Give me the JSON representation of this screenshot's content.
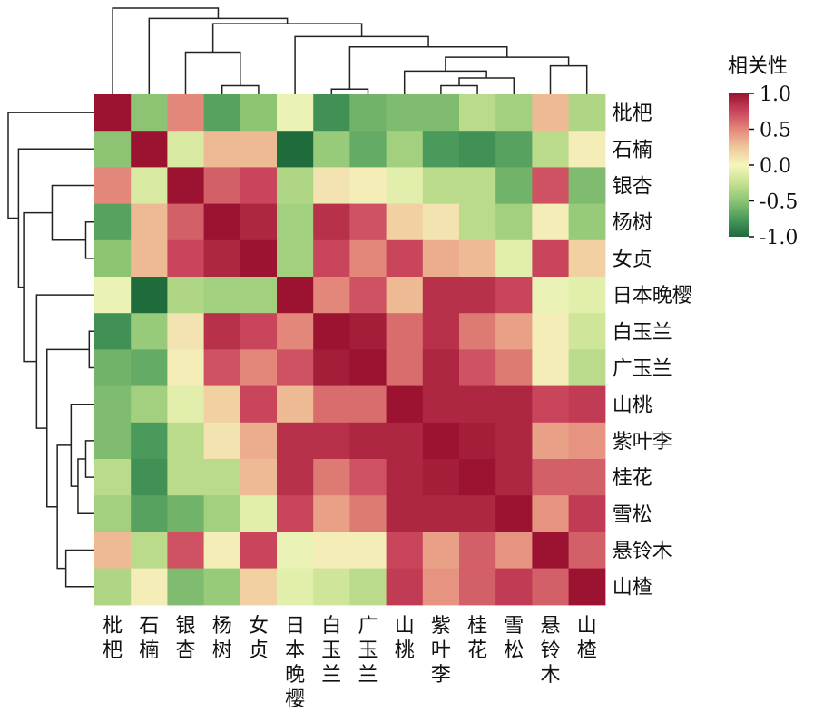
{
  "chart_data": {
    "type": "heatmap",
    "row_labels": [
      "枇杷",
      "石楠",
      "银杏",
      "杨树",
      "女贞",
      "日本晚樱",
      "白玉兰",
      "广玉兰",
      "山桃",
      "紫叶李",
      "桂花",
      "雪松",
      "悬铃木",
      "山楂"
    ],
    "col_labels": [
      "枇杷",
      "石楠",
      "银杏",
      "杨树",
      "女贞",
      "日本晚樱",
      "白玉兰",
      "广玉兰",
      "山桃",
      "紫叶李",
      "桂花",
      "雪松",
      "悬铃木",
      "山楂"
    ],
    "values": [
      [
        1.0,
        -0.5,
        0.5,
        -0.7,
        -0.5,
        -0.05,
        -0.8,
        -0.6,
        -0.55,
        -0.55,
        -0.3,
        -0.4,
        0.3,
        -0.35
      ],
      [
        -0.5,
        1.0,
        -0.15,
        0.3,
        0.3,
        -1.0,
        -0.45,
        -0.65,
        -0.4,
        -0.75,
        -0.8,
        -0.7,
        -0.3,
        0.05
      ],
      [
        0.5,
        -0.15,
        1.0,
        0.65,
        0.75,
        -0.35,
        0.1,
        0.05,
        -0.1,
        -0.3,
        -0.3,
        -0.6,
        0.7,
        -0.55
      ],
      [
        -0.7,
        0.3,
        0.65,
        1.0,
        0.9,
        -0.4,
        0.85,
        0.7,
        0.2,
        0.1,
        -0.3,
        -0.4,
        0.05,
        -0.45
      ],
      [
        -0.5,
        0.3,
        0.75,
        0.9,
        1.0,
        -0.4,
        0.75,
        0.5,
        0.75,
        0.35,
        0.3,
        -0.1,
        0.75,
        0.2
      ],
      [
        -0.05,
        -1.0,
        -0.35,
        -0.4,
        -0.4,
        1.0,
        0.5,
        0.7,
        0.3,
        0.85,
        0.85,
        0.75,
        -0.05,
        -0.1
      ],
      [
        -0.8,
        -0.45,
        0.1,
        0.85,
        0.75,
        0.5,
        1.0,
        0.95,
        0.6,
        0.85,
        0.55,
        0.4,
        0.05,
        -0.2
      ],
      [
        -0.6,
        -0.65,
        0.05,
        0.7,
        0.5,
        0.7,
        0.95,
        1.0,
        0.6,
        0.9,
        0.7,
        0.55,
        0.05,
        -0.3
      ],
      [
        -0.55,
        -0.4,
        -0.1,
        0.2,
        0.75,
        0.3,
        0.6,
        0.6,
        1.0,
        0.9,
        0.9,
        0.9,
        0.75,
        0.8
      ],
      [
        -0.55,
        -0.75,
        -0.3,
        0.1,
        0.35,
        0.85,
        0.85,
        0.9,
        0.9,
        1.0,
        0.95,
        0.9,
        0.4,
        0.45
      ],
      [
        -0.3,
        -0.8,
        -0.3,
        -0.3,
        0.3,
        0.85,
        0.55,
        0.7,
        0.9,
        0.95,
        1.0,
        0.9,
        0.65,
        0.65
      ],
      [
        -0.4,
        -0.7,
        -0.6,
        -0.4,
        -0.1,
        0.75,
        0.4,
        0.55,
        0.9,
        0.9,
        0.9,
        1.0,
        0.45,
        0.8
      ],
      [
        0.3,
        -0.3,
        0.7,
        0.05,
        0.75,
        -0.05,
        0.05,
        0.05,
        0.75,
        0.4,
        0.65,
        0.45,
        1.0,
        0.65
      ],
      [
        -0.35,
        0.05,
        -0.55,
        -0.45,
        0.2,
        -0.1,
        -0.2,
        -0.3,
        0.8,
        0.45,
        0.65,
        0.8,
        0.65,
        1.0
      ]
    ],
    "vmin": -1.0,
    "vmax": 1.0,
    "colormap": [
      "#1e6b3c",
      "#4a9a5c",
      "#8cc474",
      "#c5e28f",
      "#f5f6bf",
      "#f0c79b",
      "#e3877a",
      "#c9455c",
      "#9b1330"
    ],
    "colorbar": {
      "title": "相关性",
      "ticks": [
        1.0,
        0.5,
        0.0,
        -0.5,
        -1.0
      ],
      "tick_labels": [
        "1.0",
        "0.5",
        "0.0",
        "-0.5",
        "-1.0"
      ]
    },
    "dendrogram": true
  }
}
